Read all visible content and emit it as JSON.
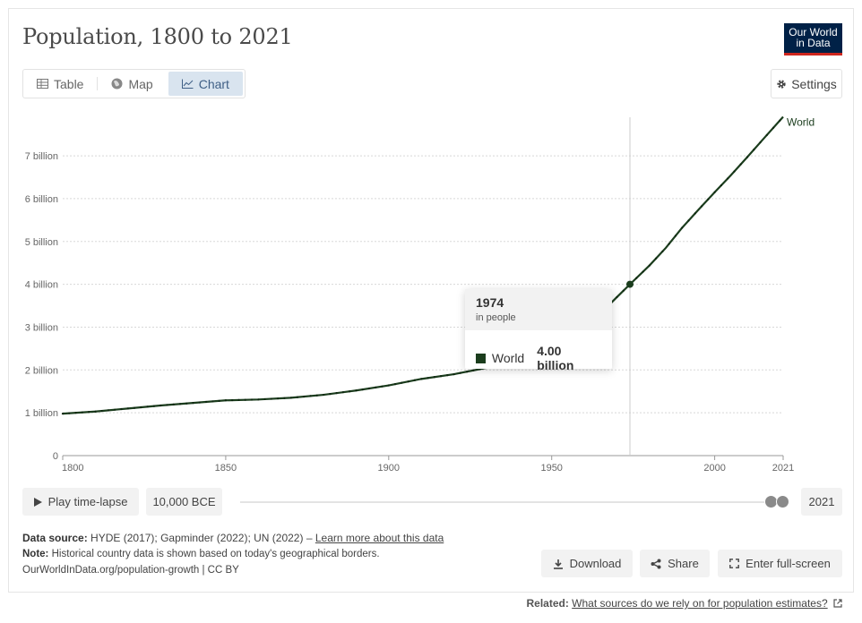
{
  "header": {
    "title": "Population, 1800 to 2021",
    "logo_line1": "Our World",
    "logo_line2": "in Data"
  },
  "tabs": [
    {
      "label": "Table",
      "icon": "table-icon"
    },
    {
      "label": "Map",
      "icon": "globe-icon"
    },
    {
      "label": "Chart",
      "icon": "line-chart-icon",
      "active": true
    }
  ],
  "settings_label": "Settings",
  "chart_data": {
    "type": "line",
    "title": "Population, 1800 to 2021",
    "xlim": [
      1800,
      2021
    ],
    "ylim": [
      0,
      7900000000
    ],
    "x_ticks": [
      1800,
      1850,
      1900,
      1950,
      2000,
      2021
    ],
    "y_ticks": [
      {
        "value": 0,
        "label": "0"
      },
      {
        "value": 1000000000,
        "label": "1 billion"
      },
      {
        "value": 2000000000,
        "label": "2 billion"
      },
      {
        "value": 3000000000,
        "label": "3 billion"
      },
      {
        "value": 4000000000,
        "label": "4 billion"
      },
      {
        "value": 5000000000,
        "label": "5 billion"
      },
      {
        "value": 6000000000,
        "label": "6 billion"
      },
      {
        "value": 7000000000,
        "label": "7 billion"
      }
    ],
    "grid": true,
    "series": [
      {
        "name": "World",
        "color": "#1b3d1d",
        "x": [
          1800,
          1810,
          1820,
          1830,
          1840,
          1850,
          1860,
          1870,
          1880,
          1890,
          1900,
          1910,
          1920,
          1930,
          1940,
          1950,
          1955,
          1960,
          1965,
          1970,
          1974,
          1980,
          1985,
          1990,
          1995,
          2000,
          2005,
          2010,
          2015,
          2021
        ],
        "y": [
          980000000,
          1030000000,
          1100000000,
          1170000000,
          1230000000,
          1290000000,
          1310000000,
          1350000000,
          1420000000,
          1520000000,
          1640000000,
          1790000000,
          1900000000,
          2050000000,
          2280000000,
          2500000000,
          2740000000,
          3000000000,
          3320000000,
          3700000000,
          4000000000,
          4440000000,
          4850000000,
          5320000000,
          5740000000,
          6150000000,
          6550000000,
          6970000000,
          7400000000,
          7910000000
        ]
      }
    ],
    "hover": {
      "x": 1974,
      "y": 4000000000
    }
  },
  "tooltip": {
    "year": "1974",
    "unit": "in people",
    "series": "World",
    "value": "4.00 billion"
  },
  "controls": {
    "play_label": "Play time-lapse",
    "start_label": "10,000 BCE",
    "end_label": "2021"
  },
  "footer": {
    "source_label": "Data source:",
    "source_text": "HYDE (2017); Gapminder (2022); UN (2022) –",
    "learn_more": "Learn more about this data",
    "note_label": "Note:",
    "note_text": "Historical country data is shown based on today's geographical borders.",
    "url_license": "OurWorldInData.org/population-growth | CC BY",
    "download_label": "Download",
    "share_label": "Share",
    "fullscreen_label": "Enter full-screen",
    "related_label": "Related:",
    "related_link": "What sources do we rely on for population estimates?"
  }
}
